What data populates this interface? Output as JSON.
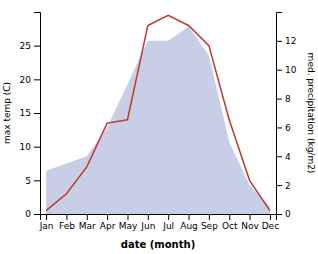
{
  "chart_data": {
    "type": "line",
    "categories": [
      "Jan",
      "Feb",
      "Mar",
      "Apr",
      "May",
      "Jun",
      "Jul",
      "Aug",
      "Sep",
      "Oct",
      "Nov",
      "Dec"
    ],
    "series": [
      {
        "type": "area",
        "axis": "y2",
        "color": "#aab4d8",
        "values": [
          3.0,
          3.5,
          4.0,
          6.0,
          9.0,
          12.0,
          12.0,
          13.0,
          11.0,
          5.0,
          2.0,
          0.5
        ]
      },
      {
        "type": "line",
        "color": "#c0392b",
        "values": [
          0.5,
          3.0,
          7.0,
          13.5,
          14.0,
          28.0,
          29.5,
          28.0,
          25.0,
          14.0,
          5.0,
          0.5
        ]
      }
    ],
    "xlabel": "date (month)",
    "ylabel": "max temp (C)",
    "y2label": "med. precipitation (kg/m2)",
    "ylim": [
      0,
      30
    ],
    "yticks": [
      0,
      5,
      10,
      15,
      20,
      25
    ],
    "y2lim": [
      0,
      14
    ],
    "y2ticks": [
      0,
      2,
      4,
      6,
      8,
      10,
      12
    ],
    "grid": false
  }
}
